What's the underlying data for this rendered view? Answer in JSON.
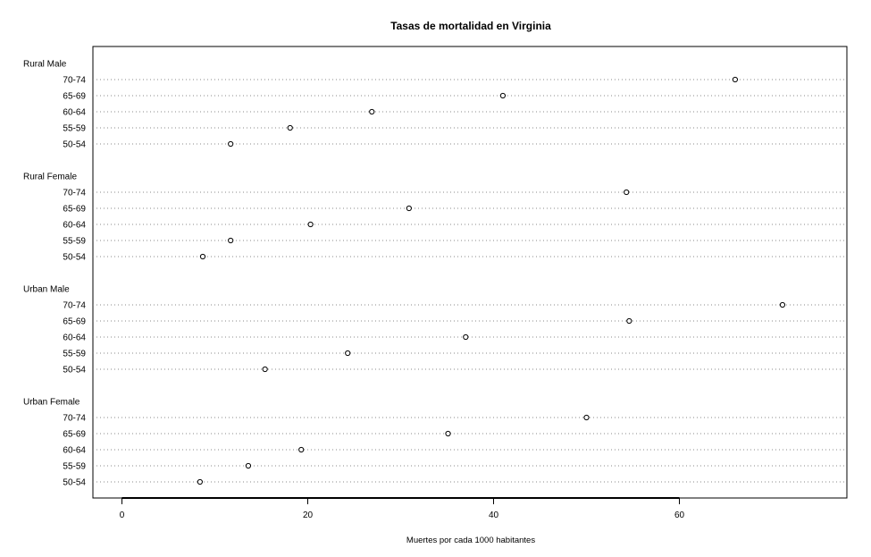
{
  "chart_data": {
    "type": "scatter",
    "subtype": "dotchart",
    "title": "Tasas de mortalidad en Virginia",
    "xlabel": "Muertes por cada 1000 habitantes",
    "ylabel": "",
    "xlim": [
      -3,
      78
    ],
    "xticks": [
      0,
      20,
      40,
      60
    ],
    "grid": "horizontal dotted",
    "groups": [
      {
        "name": "Rural Male",
        "rows": [
          {
            "label": "70-74",
            "value": 66.0
          },
          {
            "label": "65-69",
            "value": 41.0
          },
          {
            "label": "60-64",
            "value": 26.9
          },
          {
            "label": "55-59",
            "value": 18.1
          },
          {
            "label": "50-54",
            "value": 11.7
          }
        ]
      },
      {
        "name": "Rural Female",
        "rows": [
          {
            "label": "70-74",
            "value": 54.3
          },
          {
            "label": "65-69",
            "value": 30.9
          },
          {
            "label": "60-64",
            "value": 20.3
          },
          {
            "label": "55-59",
            "value": 11.7
          },
          {
            "label": "50-54",
            "value": 8.7
          }
        ]
      },
      {
        "name": "Urban Male",
        "rows": [
          {
            "label": "70-74",
            "value": 71.1
          },
          {
            "label": "65-69",
            "value": 54.6
          },
          {
            "label": "60-64",
            "value": 37.0
          },
          {
            "label": "55-59",
            "value": 24.3
          },
          {
            "label": "50-54",
            "value": 15.4
          }
        ]
      },
      {
        "name": "Urban Female",
        "rows": [
          {
            "label": "70-74",
            "value": 50.0
          },
          {
            "label": "65-69",
            "value": 35.1
          },
          {
            "label": "60-64",
            "value": 19.3
          },
          {
            "label": "55-59",
            "value": 13.6
          },
          {
            "label": "50-54",
            "value": 8.4
          }
        ]
      }
    ]
  }
}
